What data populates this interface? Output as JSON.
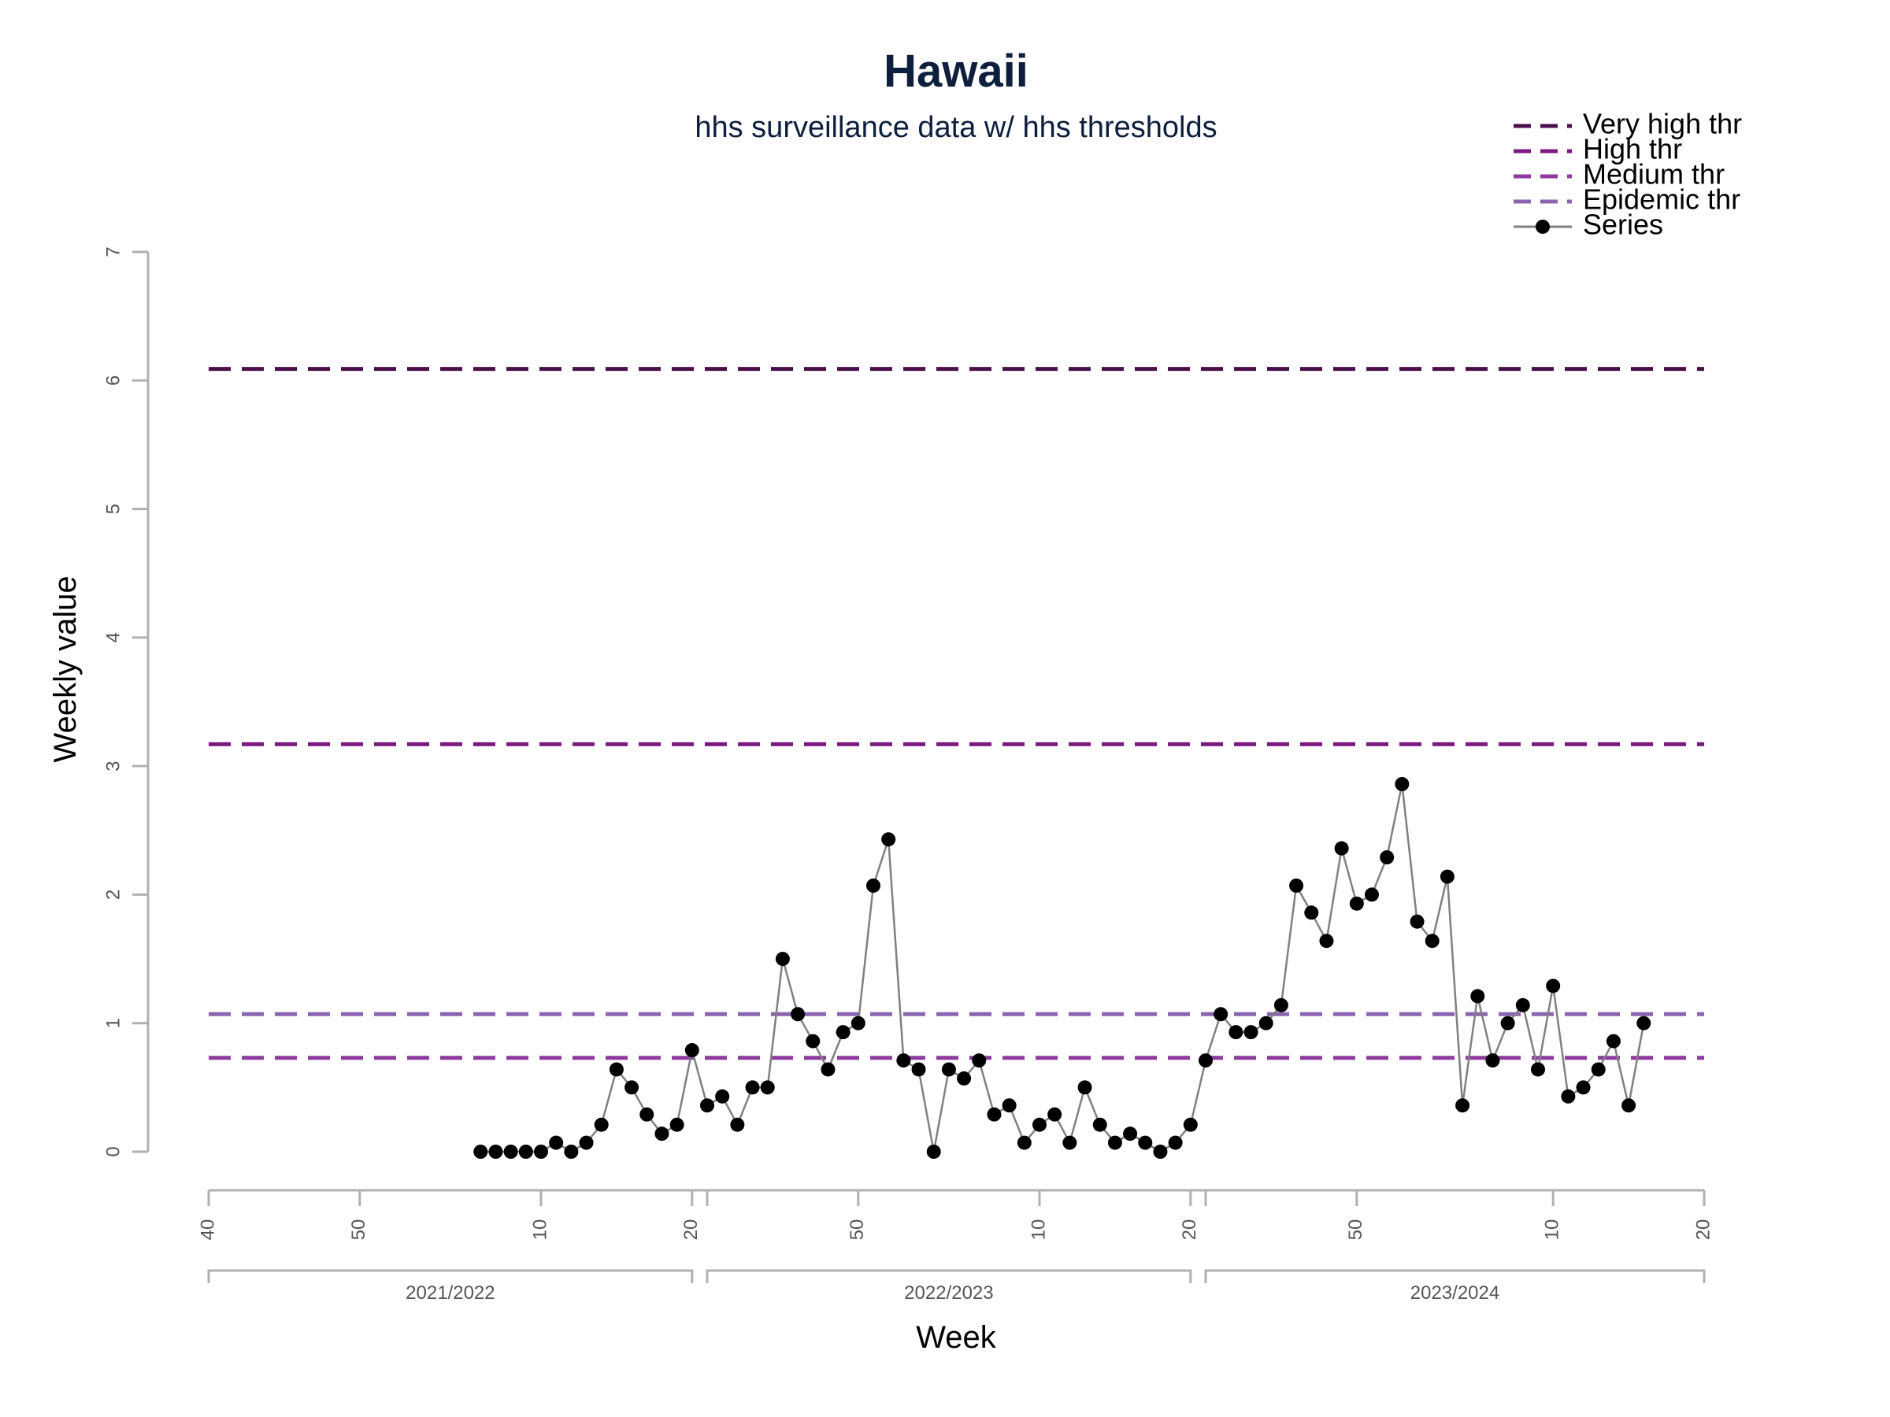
{
  "chart_data": {
    "type": "line",
    "title": "Hawaii",
    "subtitle": "hhs surveillance data w/ hhs thresholds",
    "xlabel": "Week",
    "ylabel": "Weekly value",
    "ylim": [
      0,
      7
    ],
    "y_ticks": [
      "0",
      "1",
      "2",
      "3",
      "4",
      "5",
      "6",
      "7"
    ],
    "x_week_range": [
      0,
      99
    ],
    "x_ticks": [
      {
        "week": 0,
        "label": "40"
      },
      {
        "week": 10,
        "label": "50"
      },
      {
        "week": 22,
        "label": "10"
      },
      {
        "week": 32,
        "label": "20"
      },
      {
        "week": 33,
        "label": ""
      },
      {
        "week": 43,
        "label": "50"
      },
      {
        "week": 55,
        "label": "10"
      },
      {
        "week": 65,
        "label": "20"
      },
      {
        "week": 66,
        "label": ""
      },
      {
        "week": 76,
        "label": "50"
      },
      {
        "week": 89,
        "label": "10"
      },
      {
        "week": 99,
        "label": "20"
      }
    ],
    "seasons": [
      {
        "label": "2021/2022",
        "start_week": 0,
        "end_week": 32
      },
      {
        "label": "2022/2023",
        "start_week": 33,
        "end_week": 65
      },
      {
        "label": "2023/2024",
        "start_week": 66,
        "end_week": 99
      }
    ],
    "thresholds": [
      {
        "name": "Very high thr",
        "value": 6.09,
        "color": "#4b0f4b"
      },
      {
        "name": "High thr",
        "value": 3.17,
        "color": "#7b1a80"
      },
      {
        "name": "Medium thr",
        "value": 0.73,
        "color": "#8e3a9e"
      },
      {
        "name": "Epidemic thr",
        "value": 1.07,
        "color": "#8a64b0"
      }
    ],
    "series": [
      {
        "name": "Series",
        "color": "#808080",
        "marker_color": "#000000",
        "points": [
          {
            "week": 18,
            "value": 0.0
          },
          {
            "week": 19,
            "value": 0.0
          },
          {
            "week": 20,
            "value": 0.0
          },
          {
            "week": 21,
            "value": 0.0
          },
          {
            "week": 22,
            "value": 0.0
          },
          {
            "week": 23,
            "value": 0.07
          },
          {
            "week": 24,
            "value": 0.0
          },
          {
            "week": 25,
            "value": 0.07
          },
          {
            "week": 26,
            "value": 0.21
          },
          {
            "week": 27,
            "value": 0.64
          },
          {
            "week": 28,
            "value": 0.5
          },
          {
            "week": 29,
            "value": 0.29
          },
          {
            "week": 30,
            "value": 0.14
          },
          {
            "week": 31,
            "value": 0.21
          },
          {
            "week": 32,
            "value": 0.79
          },
          {
            "week": 33,
            "value": 0.36
          },
          {
            "week": 34,
            "value": 0.43
          },
          {
            "week": 35,
            "value": 0.21
          },
          {
            "week": 36,
            "value": 0.5
          },
          {
            "week": 37,
            "value": 0.5
          },
          {
            "week": 38,
            "value": 1.5
          },
          {
            "week": 39,
            "value": 1.07
          },
          {
            "week": 40,
            "value": 0.86
          },
          {
            "week": 41,
            "value": 0.64
          },
          {
            "week": 42,
            "value": 0.93
          },
          {
            "week": 43,
            "value": 1.0
          },
          {
            "week": 44,
            "value": 2.07
          },
          {
            "week": 45,
            "value": 2.43
          },
          {
            "week": 46,
            "value": 0.71
          },
          {
            "week": 47,
            "value": 0.64
          },
          {
            "week": 48,
            "value": 0.0
          },
          {
            "week": 49,
            "value": 0.64
          },
          {
            "week": 50,
            "value": 0.57
          },
          {
            "week": 51,
            "value": 0.71
          },
          {
            "week": 52,
            "value": 0.29
          },
          {
            "week": 53,
            "value": 0.36
          },
          {
            "week": 54,
            "value": 0.07
          },
          {
            "week": 55,
            "value": 0.21
          },
          {
            "week": 56,
            "value": 0.29
          },
          {
            "week": 57,
            "value": 0.07
          },
          {
            "week": 58,
            "value": 0.5
          },
          {
            "week": 59,
            "value": 0.21
          },
          {
            "week": 60,
            "value": 0.07
          },
          {
            "week": 61,
            "value": 0.14
          },
          {
            "week": 62,
            "value": 0.07
          },
          {
            "week": 63,
            "value": 0.0
          },
          {
            "week": 64,
            "value": 0.07
          },
          {
            "week": 65,
            "value": 0.21
          },
          {
            "week": 66,
            "value": 0.71
          },
          {
            "week": 67,
            "value": 1.07
          },
          {
            "week": 68,
            "value": 0.93
          },
          {
            "week": 69,
            "value": 0.93
          },
          {
            "week": 70,
            "value": 1.0
          },
          {
            "week": 71,
            "value": 1.14
          },
          {
            "week": 72,
            "value": 2.07
          },
          {
            "week": 73,
            "value": 1.86
          },
          {
            "week": 74,
            "value": 1.64
          },
          {
            "week": 75,
            "value": 2.36
          },
          {
            "week": 76,
            "value": 1.93
          },
          {
            "week": 77,
            "value": 2.0
          },
          {
            "week": 78,
            "value": 2.29
          },
          {
            "week": 79,
            "value": 2.86
          },
          {
            "week": 80,
            "value": 1.79
          },
          {
            "week": 81,
            "value": 1.64
          },
          {
            "week": 82,
            "value": 2.14
          },
          {
            "week": 83,
            "value": 0.36
          },
          {
            "week": 84,
            "value": 1.21
          },
          {
            "week": 85,
            "value": 0.71
          },
          {
            "week": 86,
            "value": 1.0
          },
          {
            "week": 87,
            "value": 1.14
          },
          {
            "week": 88,
            "value": 0.64
          },
          {
            "week": 89,
            "value": 1.29
          },
          {
            "week": 90,
            "value": 0.43
          },
          {
            "week": 91,
            "value": 0.5
          },
          {
            "week": 92,
            "value": 0.64
          },
          {
            "week": 93,
            "value": 0.86
          },
          {
            "week": 94,
            "value": 0.36
          },
          {
            "week": 95,
            "value": 1.0
          }
        ]
      }
    ],
    "legend": {
      "placement": "top-right",
      "entries": [
        "Very high thr",
        "High thr",
        "Medium thr",
        "Epidemic thr",
        "Series"
      ]
    }
  }
}
